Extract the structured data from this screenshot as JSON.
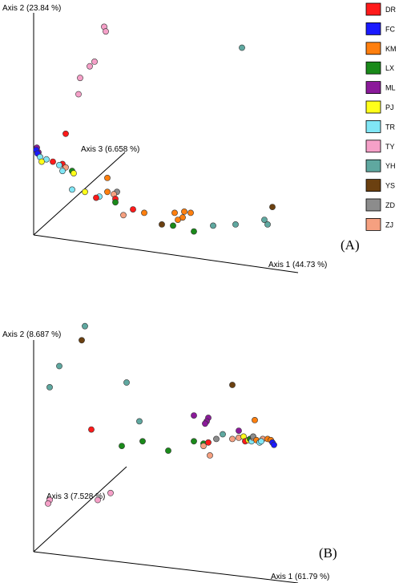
{
  "legend": [
    {
      "label": "DR",
      "color": "#ff1a1a"
    },
    {
      "label": "FC",
      "color": "#1a1aff"
    },
    {
      "label": "KM",
      "color": "#ff7f0e"
    },
    {
      "label": "LX",
      "color": "#1a8a1a"
    },
    {
      "label": "ML",
      "color": "#8b1a9a"
    },
    {
      "label": "PJ",
      "color": "#ffff1a"
    },
    {
      "label": "TR",
      "color": "#80e6f5"
    },
    {
      "label": "TY",
      "color": "#f5a0c8"
    },
    {
      "label": "YH",
      "color": "#5fa8a0"
    },
    {
      "label": "YS",
      "color": "#6b4010"
    },
    {
      "label": "ZD",
      "color": "#8c8c8c"
    },
    {
      "label": "ZJ",
      "color": "#f5a080"
    }
  ],
  "chart_data": [
    {
      "type": "scatter",
      "panel_label": "(A)",
      "axis_labels": {
        "axis1": "Axis 1 (44.73 %)",
        "axis2": "Axis 2 (23.84 %)",
        "axis3": "Axis 3 (6.658 %)"
      },
      "axis_range": {
        "x": [
          0,
          1
        ],
        "y": [
          0,
          1
        ]
      },
      "points": [
        {
          "g": "TY",
          "x": 0.22,
          "y": 0.94
        },
        {
          "g": "TY",
          "x": 0.225,
          "y": 0.92
        },
        {
          "g": "TY",
          "x": 0.19,
          "y": 0.79
        },
        {
          "g": "TY",
          "x": 0.175,
          "y": 0.77
        },
        {
          "g": "TY",
          "x": 0.145,
          "y": 0.72
        },
        {
          "g": "TY",
          "x": 0.14,
          "y": 0.65
        },
        {
          "g": "YH",
          "x": 0.65,
          "y": 0.85
        },
        {
          "g": "DR",
          "x": 0.1,
          "y": 0.48
        },
        {
          "g": "ML",
          "x": 0.01,
          "y": 0.42
        },
        {
          "g": "ML",
          "x": 0.015,
          "y": 0.4
        },
        {
          "g": "FC",
          "x": 0.008,
          "y": 0.41
        },
        {
          "g": "FC",
          "x": 0.012,
          "y": 0.395
        },
        {
          "g": "TR",
          "x": 0.02,
          "y": 0.38
        },
        {
          "g": "TR",
          "x": 0.04,
          "y": 0.37
        },
        {
          "g": "PJ",
          "x": 0.025,
          "y": 0.36
        },
        {
          "g": "DR",
          "x": 0.06,
          "y": 0.36
        },
        {
          "g": "DR",
          "x": 0.09,
          "y": 0.35
        },
        {
          "g": "TR",
          "x": 0.08,
          "y": 0.345
        },
        {
          "g": "ZJ",
          "x": 0.1,
          "y": 0.335
        },
        {
          "g": "LX",
          "x": 0.12,
          "y": 0.32
        },
        {
          "g": "PJ",
          "x": 0.125,
          "y": 0.31
        },
        {
          "g": "TR",
          "x": 0.09,
          "y": 0.32
        },
        {
          "g": "TR",
          "x": 0.12,
          "y": 0.24
        },
        {
          "g": "PJ",
          "x": 0.16,
          "y": 0.23
        },
        {
          "g": "KM",
          "x": 0.23,
          "y": 0.29
        },
        {
          "g": "KM",
          "x": 0.23,
          "y": 0.23
        },
        {
          "g": "ZD",
          "x": 0.26,
          "y": 0.23
        },
        {
          "g": "ZJ",
          "x": 0.25,
          "y": 0.22
        },
        {
          "g": "DR",
          "x": 0.255,
          "y": 0.2
        },
        {
          "g": "TR",
          "x": 0.205,
          "y": 0.21
        },
        {
          "g": "DR",
          "x": 0.195,
          "y": 0.205
        },
        {
          "g": "LX",
          "x": 0.255,
          "y": 0.185
        },
        {
          "g": "DR",
          "x": 0.31,
          "y": 0.155
        },
        {
          "g": "ZJ",
          "x": 0.28,
          "y": 0.13
        },
        {
          "g": "KM",
          "x": 0.345,
          "y": 0.14
        },
        {
          "g": "KM",
          "x": 0.44,
          "y": 0.14
        },
        {
          "g": "KM",
          "x": 0.47,
          "y": 0.145
        },
        {
          "g": "KM",
          "x": 0.49,
          "y": 0.14
        },
        {
          "g": "KM",
          "x": 0.465,
          "y": 0.12
        },
        {
          "g": "KM",
          "x": 0.45,
          "y": 0.11
        },
        {
          "g": "YS",
          "x": 0.4,
          "y": 0.09
        },
        {
          "g": "LX",
          "x": 0.435,
          "y": 0.085
        },
        {
          "g": "LX",
          "x": 0.5,
          "y": 0.06
        },
        {
          "g": "YH",
          "x": 0.56,
          "y": 0.085
        },
        {
          "g": "YH",
          "x": 0.63,
          "y": 0.09
        },
        {
          "g": "YH",
          "x": 0.72,
          "y": 0.11
        },
        {
          "g": "YH",
          "x": 0.73,
          "y": 0.09
        },
        {
          "g": "YS",
          "x": 0.745,
          "y": 0.165
        }
      ]
    },
    {
      "type": "scatter",
      "panel_label": "(B)",
      "axis_labels": {
        "axis1": "Axis 1 (61.79 %)",
        "axis2": "Axis 2 (8.687 %)",
        "axis3": "Axis 3 (7.528 %)"
      },
      "axis_range": {
        "x": [
          0,
          1
        ],
        "y": [
          0,
          1
        ]
      },
      "points": [
        {
          "g": "YH",
          "x": 0.16,
          "y": 0.96
        },
        {
          "g": "YS",
          "x": 0.15,
          "y": 0.9
        },
        {
          "g": "YH",
          "x": 0.08,
          "y": 0.79
        },
        {
          "g": "YH",
          "x": 0.05,
          "y": 0.7
        },
        {
          "g": "YH",
          "x": 0.29,
          "y": 0.72
        },
        {
          "g": "YS",
          "x": 0.62,
          "y": 0.71
        },
        {
          "g": "ML",
          "x": 0.5,
          "y": 0.58
        },
        {
          "g": "ML",
          "x": 0.545,
          "y": 0.57
        },
        {
          "g": "ML",
          "x": 0.54,
          "y": 0.555
        },
        {
          "g": "ML",
          "x": 0.535,
          "y": 0.545
        },
        {
          "g": "KM",
          "x": 0.69,
          "y": 0.56
        },
        {
          "g": "ML",
          "x": 0.64,
          "y": 0.515
        },
        {
          "g": "YH",
          "x": 0.33,
          "y": 0.555
        },
        {
          "g": "DR",
          "x": 0.18,
          "y": 0.52
        },
        {
          "g": "YH",
          "x": 0.59,
          "y": 0.5
        },
        {
          "g": "LX",
          "x": 0.34,
          "y": 0.47
        },
        {
          "g": "LX",
          "x": 0.275,
          "y": 0.45
        },
        {
          "g": "LX",
          "x": 0.42,
          "y": 0.43
        },
        {
          "g": "LX",
          "x": 0.5,
          "y": 0.47
        },
        {
          "g": "LX",
          "x": 0.53,
          "y": 0.46
        },
        {
          "g": "ZJ",
          "x": 0.53,
          "y": 0.45
        },
        {
          "g": "DR",
          "x": 0.545,
          "y": 0.465
        },
        {
          "g": "ZJ",
          "x": 0.55,
          "y": 0.41
        },
        {
          "g": "ZD",
          "x": 0.57,
          "y": 0.48
        },
        {
          "g": "ZJ",
          "x": 0.62,
          "y": 0.48
        },
        {
          "g": "ZJ",
          "x": 0.64,
          "y": 0.485
        },
        {
          "g": "PJ",
          "x": 0.655,
          "y": 0.49
        },
        {
          "g": "DR",
          "x": 0.66,
          "y": 0.47
        },
        {
          "g": "PJ",
          "x": 0.67,
          "y": 0.475
        },
        {
          "g": "LX",
          "x": 0.675,
          "y": 0.48
        },
        {
          "g": "TR",
          "x": 0.68,
          "y": 0.47
        },
        {
          "g": "ZJ",
          "x": 0.685,
          "y": 0.485
        },
        {
          "g": "ZD",
          "x": 0.685,
          "y": 0.49
        },
        {
          "g": "KM",
          "x": 0.695,
          "y": 0.475
        },
        {
          "g": "TR",
          "x": 0.705,
          "y": 0.465
        },
        {
          "g": "ZJ",
          "x": 0.715,
          "y": 0.48
        },
        {
          "g": "KM",
          "x": 0.73,
          "y": 0.48
        },
        {
          "g": "KM",
          "x": 0.74,
          "y": 0.475
        },
        {
          "g": "FC",
          "x": 0.745,
          "y": 0.465
        },
        {
          "g": "FC",
          "x": 0.75,
          "y": 0.455
        },
        {
          "g": "TR",
          "x": 0.71,
          "y": 0.47
        },
        {
          "g": "TY",
          "x": 0.24,
          "y": 0.25
        },
        {
          "g": "TY",
          "x": 0.2,
          "y": 0.22
        },
        {
          "g": "TY",
          "x": 0.05,
          "y": 0.22
        },
        {
          "g": "TY",
          "x": 0.045,
          "y": 0.205
        }
      ]
    }
  ]
}
